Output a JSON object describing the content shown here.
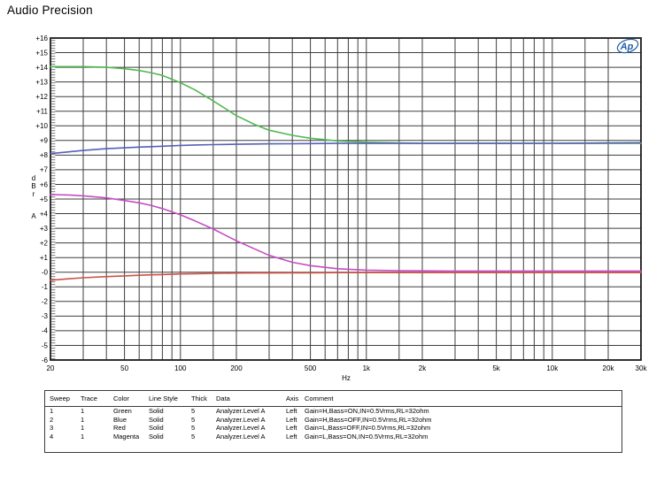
{
  "title": "Audio Precision",
  "logo": {
    "text": "Ap",
    "color": "#1f5fa8"
  },
  "chart_data": {
    "type": "line",
    "x_scale": "log",
    "xlabel": "Hz",
    "ylabel_stack": [
      "d",
      "B",
      "r"
    ],
    "channel": "A",
    "xlim": [
      20,
      30000
    ],
    "ylim": [
      -6,
      16
    ],
    "y_tick_step": 1,
    "grid_on": true,
    "grid_color": "#3e3e3e",
    "legend_position": "table-below",
    "x_major_ticks": [
      {
        "value": 20,
        "label": "20"
      },
      {
        "value": 50,
        "label": "50"
      },
      {
        "value": 100,
        "label": "100"
      },
      {
        "value": 200,
        "label": "200"
      },
      {
        "value": 500,
        "label": "500"
      },
      {
        "value": 1000,
        "label": "1k"
      },
      {
        "value": 2000,
        "label": "2k"
      },
      {
        "value": 5000,
        "label": "5k"
      },
      {
        "value": 10000,
        "label": "10k"
      },
      {
        "value": 20000,
        "label": "20k"
      },
      {
        "value": 30000,
        "label": "30k"
      }
    ],
    "x_gridlines": [
      20,
      30,
      40,
      50,
      60,
      70,
      80,
      90,
      100,
      150,
      200,
      300,
      400,
      500,
      600,
      700,
      800,
      900,
      1000,
      1500,
      2000,
      3000,
      4000,
      5000,
      6000,
      7000,
      8000,
      9000,
      10000,
      15000,
      20000,
      30000
    ],
    "x": [
      20,
      25,
      30,
      40,
      50,
      60,
      70,
      80,
      100,
      120,
      150,
      200,
      250,
      300,
      400,
      500,
      700,
      1000,
      1500,
      2000,
      3000,
      5000,
      7000,
      10000,
      15000,
      20000,
      30000
    ],
    "series": [
      {
        "name": "Green",
        "color": "#53b853",
        "comment": "Gain=H,Bass=ON,IN=0.5Vrms,RL=32ohm",
        "values": [
          14.05,
          14.05,
          14.05,
          14.0,
          13.9,
          13.78,
          13.62,
          13.45,
          12.95,
          12.45,
          11.7,
          10.7,
          10.1,
          9.7,
          9.35,
          9.15,
          8.97,
          8.88,
          8.83,
          8.81,
          8.8,
          8.8,
          8.8,
          8.8,
          8.8,
          8.8,
          8.8
        ]
      },
      {
        "name": "Blue",
        "color": "#5560b8",
        "comment": "Gain=H,Bass=OFF,IN=0.5Vrms,RL=32ohm",
        "values": [
          8.1,
          8.22,
          8.32,
          8.44,
          8.5,
          8.55,
          8.58,
          8.61,
          8.66,
          8.69,
          8.72,
          8.74,
          8.76,
          8.77,
          8.78,
          8.79,
          8.8,
          8.8,
          8.8,
          8.8,
          8.8,
          8.8,
          8.8,
          8.81,
          8.82,
          8.83,
          8.85
        ]
      },
      {
        "name": "Red",
        "color": "#cd5248",
        "comment": "Gain=L,Bass=OFF,IN=0.5Vrms,RL=32ohm",
        "values": [
          -0.55,
          -0.45,
          -0.38,
          -0.3,
          -0.25,
          -0.21,
          -0.18,
          -0.16,
          -0.12,
          -0.1,
          -0.08,
          -0.06,
          -0.05,
          -0.05,
          -0.04,
          -0.04,
          -0.03,
          -0.03,
          -0.03,
          -0.03,
          -0.03,
          -0.03,
          -0.03,
          -0.03,
          -0.03,
          -0.03,
          -0.03
        ]
      },
      {
        "name": "Magenta",
        "color": "#c44ec4",
        "comment": "Gain=L,Bass=ON,IN=0.5Vrms,RL=32ohm",
        "values": [
          5.3,
          5.28,
          5.22,
          5.08,
          4.9,
          4.74,
          4.55,
          4.35,
          3.92,
          3.5,
          2.95,
          2.15,
          1.6,
          1.15,
          0.68,
          0.45,
          0.24,
          0.14,
          0.1,
          0.09,
          0.08,
          0.08,
          0.08,
          0.08,
          0.08,
          0.08,
          0.08
        ]
      }
    ]
  },
  "table": {
    "headers": [
      "Sweep",
      "Trace",
      "Color",
      "Line Style",
      "Thick",
      "Data",
      "Axis",
      "Comment"
    ],
    "rows": [
      [
        "1",
        "1",
        "Green",
        "Solid",
        "5",
        "Analyzer.Level A",
        "Left",
        "Gain=H,Bass=ON,IN=0.5Vrms,RL=32ohm"
      ],
      [
        "2",
        "1",
        "Blue",
        "Solid",
        "5",
        "Analyzer.Level A",
        "Left",
        "Gain=H,Bass=OFF,IN=0.5Vrms,RL=32ohm"
      ],
      [
        "3",
        "1",
        "Red",
        "Solid",
        "5",
        "Analyzer.Level A",
        "Left",
        "Gain=L,Bass=OFF,IN=0.5Vrms,RL=32ohm"
      ],
      [
        "4",
        "1",
        "Magenta",
        "Solid",
        "5",
        "Analyzer.Level A",
        "Left",
        "Gain=L,Bass=ON,IN=0.5Vrms,RL=32ohm"
      ]
    ]
  }
}
